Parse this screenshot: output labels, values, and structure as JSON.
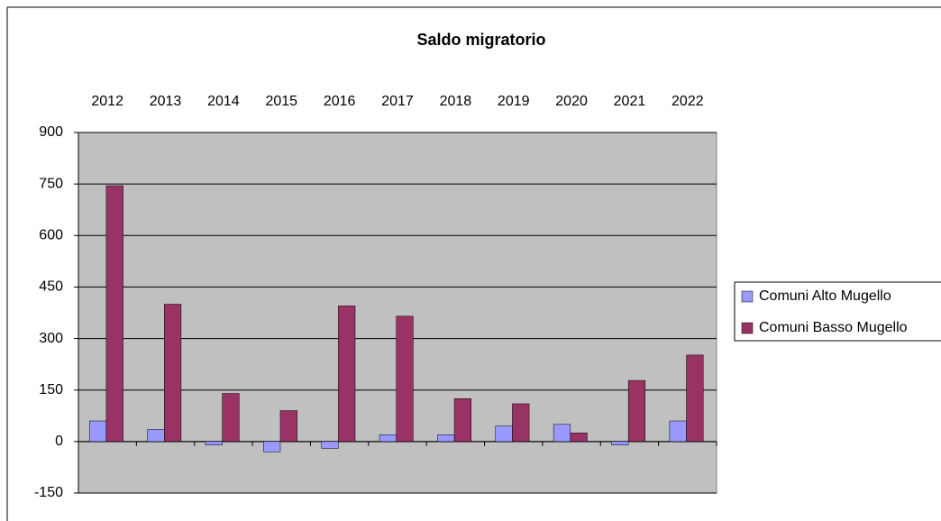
{
  "chart_data": {
    "type": "bar",
    "title": "Saldo migratorio",
    "categories": [
      "2012",
      "2013",
      "2014",
      "2015",
      "2016",
      "2017",
      "2018",
      "2019",
      "2020",
      "2021",
      "2022"
    ],
    "series": [
      {
        "name": "Comuni Alto Mugello",
        "color": "#9999ff",
        "values": [
          60,
          35,
          -10,
          -30,
          -20,
          20,
          20,
          45,
          50,
          -10,
          60
        ]
      },
      {
        "name": "Comuni Basso Mugello",
        "color": "#993366",
        "values": [
          745,
          400,
          140,
          90,
          395,
          365,
          125,
          110,
          25,
          178,
          252
        ]
      }
    ],
    "ylim": [
      -150,
      900
    ],
    "yticks": [
      -150,
      0,
      150,
      300,
      450,
      600,
      750,
      900
    ],
    "grid": true,
    "legend": "right"
  }
}
